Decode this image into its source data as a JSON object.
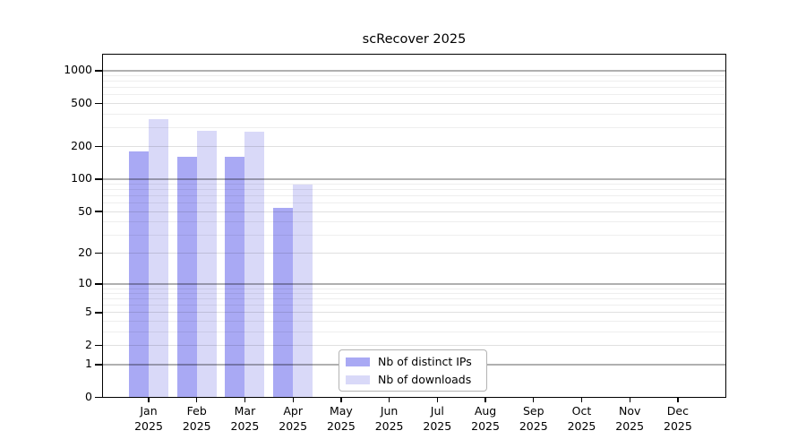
{
  "title": "scRecover 2025",
  "chart_data": {
    "type": "bar",
    "title": "scRecover 2025",
    "categories": [
      "Jan 2025",
      "Feb 2025",
      "Mar 2025",
      "Apr 2025",
      "May 2025",
      "Jun 2025",
      "Jul 2025",
      "Aug 2025",
      "Sep 2025",
      "Oct 2025",
      "Nov 2025",
      "Dec 2025"
    ],
    "series": [
      {
        "name": "Nb of distinct IPs",
        "color": "#a9a9f4",
        "values": [
          182,
          160,
          160,
          54,
          0,
          0,
          0,
          0,
          0,
          0,
          0,
          0
        ]
      },
      {
        "name": "Nb of downloads",
        "color": "#d9d9f8",
        "values": [
          355,
          280,
          275,
          89,
          0,
          0,
          0,
          0,
          0,
          0,
          0,
          0
        ]
      }
    ],
    "xlabel": "",
    "ylabel": "",
    "y_scale": "log10(value+1)",
    "y_ticks": [
      0,
      1,
      2,
      5,
      10,
      20,
      50,
      100,
      200,
      500,
      1000
    ],
    "y_minor_gridlines": [
      3,
      4,
      6,
      7,
      8,
      9,
      30,
      40,
      60,
      70,
      80,
      90,
      300,
      400,
      600,
      700,
      800,
      900
    ],
    "ylim": [
      0,
      1450
    ],
    "grid": true,
    "legend_position": "inside-bottom-center",
    "colors": {
      "bar_distinct_ips": "#a9a9f4",
      "bar_downloads": "#d9d9f8",
      "axis": "#000000",
      "gridline_power10": "#b0b0b0",
      "gridline_labeled": "#e0e0e0",
      "gridline_minor": "#eeeeee",
      "background": "#ffffff"
    }
  }
}
